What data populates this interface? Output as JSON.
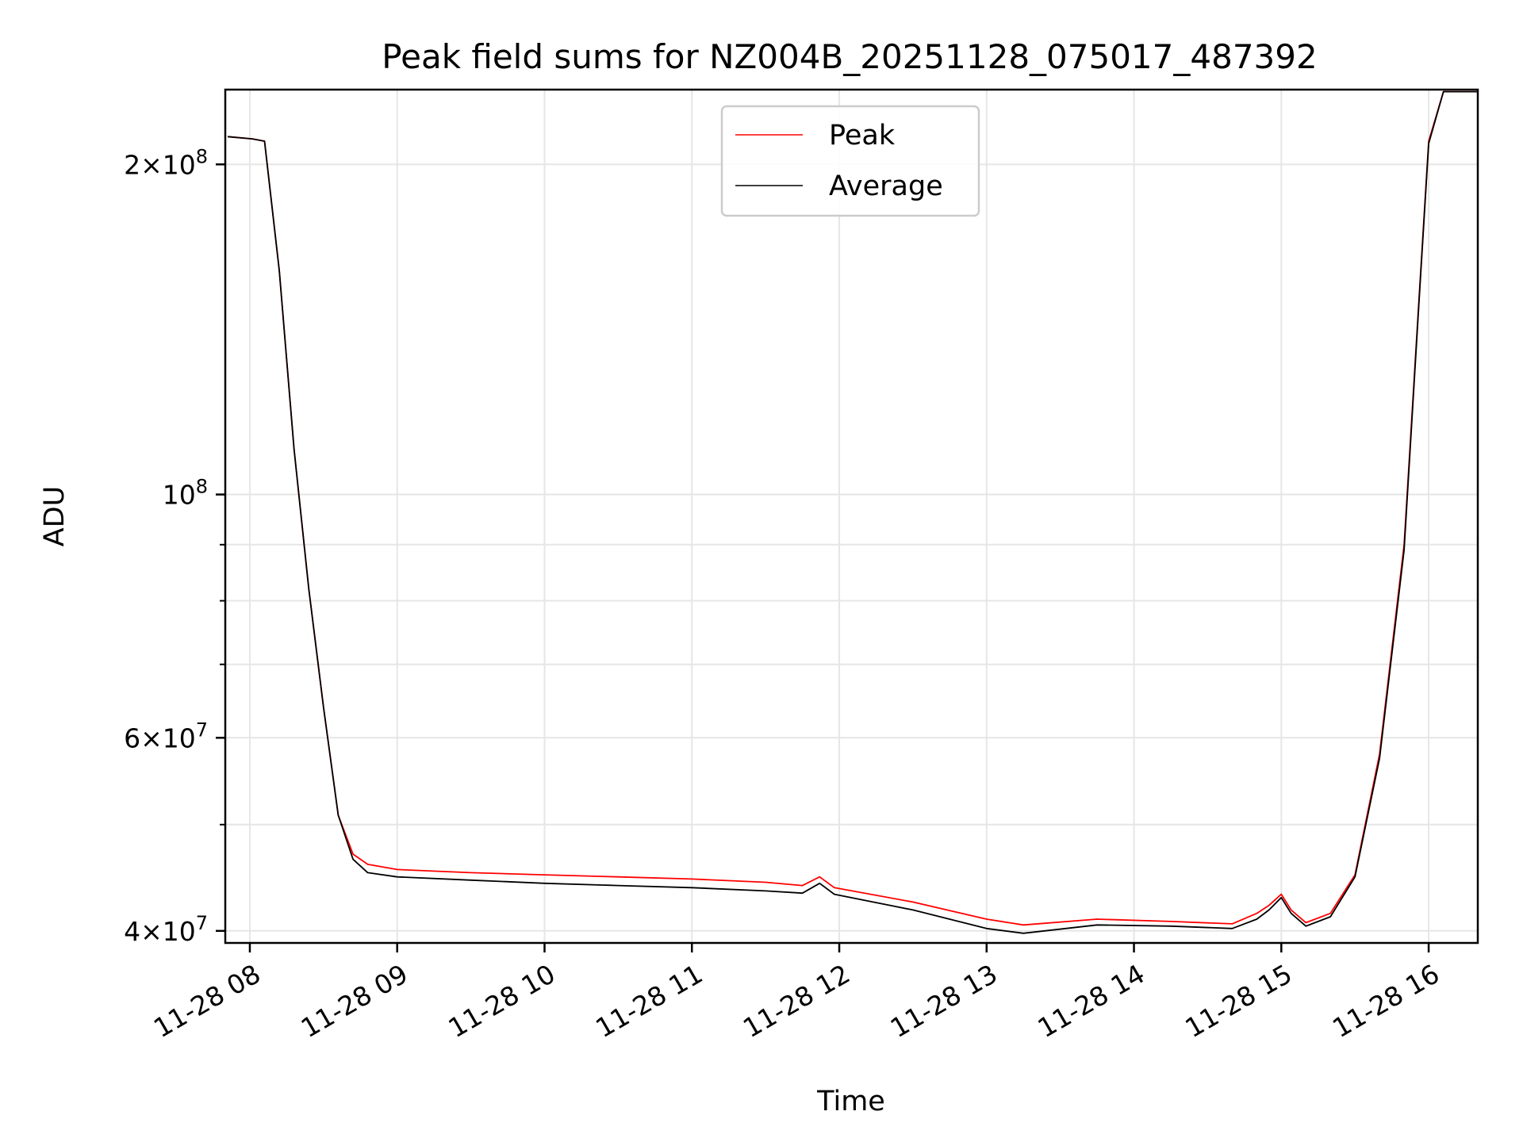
{
  "chart_data": {
    "type": "line",
    "title": "Peak field sums for NZ004B_20251128_075017_487392",
    "xlabel": "Time",
    "ylabel": "ADU",
    "yscale": "log",
    "ylim": [
      39000000,
      234000000
    ],
    "xlim": [
      "2025-11-28 07:50",
      "2025-11-28 16:20"
    ],
    "grid": true,
    "legend_position": "top-center",
    "x_ticks": [
      {
        "value": "2025-11-28 08:00",
        "label": "11-28 08"
      },
      {
        "value": "2025-11-28 09:00",
        "label": "11-28 09"
      },
      {
        "value": "2025-11-28 10:00",
        "label": "11-28 10"
      },
      {
        "value": "2025-11-28 11:00",
        "label": "11-28 11"
      },
      {
        "value": "2025-11-28 12:00",
        "label": "11-28 12"
      },
      {
        "value": "2025-11-28 13:00",
        "label": "11-28 13"
      },
      {
        "value": "2025-11-28 14:00",
        "label": "11-28 14"
      },
      {
        "value": "2025-11-28 15:00",
        "label": "11-28 15"
      },
      {
        "value": "2025-11-28 16:00",
        "label": "11-28 16"
      }
    ],
    "y_ticks": [
      {
        "value": 40000000,
        "mantissa": "4",
        "exponent": "7"
      },
      {
        "value": 60000000,
        "mantissa": "6",
        "exponent": "7"
      },
      {
        "value": 100000000,
        "mantissa": "",
        "exponent": "8"
      },
      {
        "value": 200000000,
        "mantissa": "2",
        "exponent": "8"
      }
    ],
    "y_minor_ticks": [
      50000000,
      70000000,
      80000000,
      90000000
    ],
    "series": [
      {
        "name": "Peak",
        "color": "#ff0000",
        "x": [
          "2025-11-28 07:51",
          "2025-11-28 08:01",
          "2025-11-28 08:06",
          "2025-11-28 08:12",
          "2025-11-28 08:18",
          "2025-11-28 08:24",
          "2025-11-28 08:30",
          "2025-11-28 08:36",
          "2025-11-28 08:42",
          "2025-11-28 08:48",
          "2025-11-28 09:00",
          "2025-11-28 09:30",
          "2025-11-28 10:00",
          "2025-11-28 10:30",
          "2025-11-28 11:00",
          "2025-11-28 11:30",
          "2025-11-28 11:45",
          "2025-11-28 11:52",
          "2025-11-28 11:58",
          "2025-11-28 12:30",
          "2025-11-28 13:00",
          "2025-11-28 13:15",
          "2025-11-28 13:45",
          "2025-11-28 14:15",
          "2025-11-28 14:40",
          "2025-11-28 14:50",
          "2025-11-28 14:55",
          "2025-11-28 15:00",
          "2025-11-28 15:04",
          "2025-11-28 15:10",
          "2025-11-28 15:20",
          "2025-11-28 15:30",
          "2025-11-28 15:40",
          "2025-11-28 15:50",
          "2025-11-28 15:56",
          "2025-11-28 16:00",
          "2025-11-28 16:06",
          "2025-11-28 16:20"
        ],
        "y": [
          212000000,
          211000000,
          210000000,
          160000000,
          110000000,
          82000000,
          64000000,
          51000000,
          47000000,
          46000000,
          45500000,
          45200000,
          45000000,
          44800000,
          44600000,
          44300000,
          44000000,
          44800000,
          43800000,
          42500000,
          41000000,
          40500000,
          41000000,
          40800000,
          40600000,
          41500000,
          42200000,
          43200000,
          41800000,
          40700000,
          41500000,
          45000000,
          58000000,
          90000000,
          150000000,
          210000000,
          233000000,
          233000000
        ]
      },
      {
        "name": "Average",
        "color": "#000000",
        "x": [
          "2025-11-28 07:51",
          "2025-11-28 08:01",
          "2025-11-28 08:06",
          "2025-11-28 08:12",
          "2025-11-28 08:18",
          "2025-11-28 08:24",
          "2025-11-28 08:30",
          "2025-11-28 08:36",
          "2025-11-28 08:42",
          "2025-11-28 08:48",
          "2025-11-28 09:00",
          "2025-11-28 09:30",
          "2025-11-28 10:00",
          "2025-11-28 10:30",
          "2025-11-28 11:00",
          "2025-11-28 11:30",
          "2025-11-28 11:45",
          "2025-11-28 11:52",
          "2025-11-28 11:58",
          "2025-11-28 12:30",
          "2025-11-28 13:00",
          "2025-11-28 13:15",
          "2025-11-28 13:45",
          "2025-11-28 14:15",
          "2025-11-28 14:40",
          "2025-11-28 14:50",
          "2025-11-28 14:55",
          "2025-11-28 15:00",
          "2025-11-28 15:04",
          "2025-11-28 15:10",
          "2025-11-28 15:20",
          "2025-11-28 15:30",
          "2025-11-28 15:40",
          "2025-11-28 15:50",
          "2025-11-28 15:56",
          "2025-11-28 16:00",
          "2025-11-28 16:06",
          "2025-11-28 16:20"
        ],
        "y": [
          212000000,
          211000000,
          210000000,
          160000000,
          110000000,
          82000000,
          64000000,
          51000000,
          46500000,
          45200000,
          44800000,
          44500000,
          44200000,
          44000000,
          43800000,
          43500000,
          43300000,
          44200000,
          43200000,
          41800000,
          40200000,
          39800000,
          40500000,
          40400000,
          40200000,
          41000000,
          41800000,
          42900000,
          41500000,
          40400000,
          41200000,
          44800000,
          57500000,
          89000000,
          149000000,
          209000000,
          233000000,
          233000000
        ]
      }
    ]
  }
}
